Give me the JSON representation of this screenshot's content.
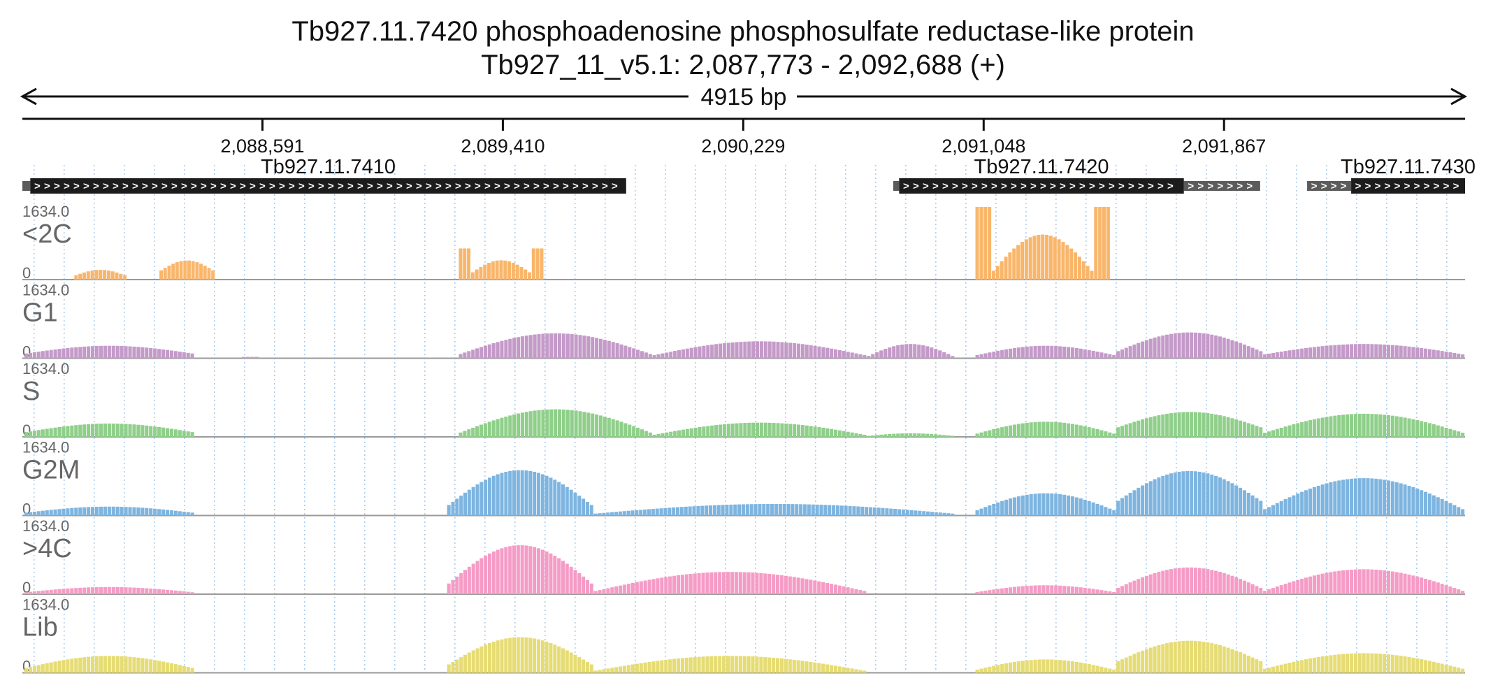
{
  "header": {
    "title": "Tb927.11.7420  phosphoadenosine phosphosulfate reductase-like protein",
    "subtitle": "Tb927_11_v5.1: 2,087,773 - 2,092,688 (+)",
    "span_label": "4915 bp"
  },
  "chart_data": {
    "type": "area",
    "region": {
      "chrom": "Tb927_11_v5.1",
      "start": 2087773,
      "end": 2092688,
      "strand": "+"
    },
    "ticks": [
      {
        "pos": 2088591,
        "label": "2,088,591"
      },
      {
        "pos": 2089410,
        "label": "2,089,410"
      },
      {
        "pos": 2090229,
        "label": "2,090,229"
      },
      {
        "pos": 2091048,
        "label": "2,091,048"
      },
      {
        "pos": 2091867,
        "label": "2,091,867"
      }
    ],
    "genes": [
      {
        "name": "Tb927.11.7410",
        "cds": [
          2087800,
          2089830
        ],
        "utr": [
          [
            2087773,
            2087800
          ]
        ]
      },
      {
        "name": "Tb927.11.7420",
        "cds": [
          2090760,
          2091730
        ],
        "utr": [
          [
            2090740,
            2090760
          ],
          [
            2091730,
            2091990
          ]
        ]
      },
      {
        "name": "Tb927.11.7430",
        "cds": [
          2092300,
          2092688
        ],
        "utr": [
          [
            2092150,
            2092300
          ]
        ]
      }
    ],
    "ylim": [
      0,
      1634.0
    ],
    "ymax_label": "1634.0",
    "ymin_label": "0",
    "series": [
      {
        "name": "<2C",
        "color": "#f9b66b",
        "segments": [
          {
            "start": 2087950,
            "end": 2088130,
            "shape": "hump",
            "low": 80,
            "high": 220
          },
          {
            "start": 2088240,
            "end": 2088430,
            "shape": "hump",
            "low": 180,
            "high": 430
          },
          {
            "start": 2089260,
            "end": 2089550,
            "shape": "dip",
            "low": 100,
            "high": 700
          },
          {
            "start": 2091020,
            "end": 2091480,
            "shape": "dip",
            "low": 140,
            "high": 1634
          }
        ]
      },
      {
        "name": "G1",
        "color": "#c49ac9",
        "segments": [
          {
            "start": 2087780,
            "end": 2088360,
            "shape": "hump",
            "low": 100,
            "high": 280
          },
          {
            "start": 2088520,
            "end": 2088580,
            "shape": "flat",
            "low": 30,
            "high": 30
          },
          {
            "start": 2089260,
            "end": 2089920,
            "shape": "hump",
            "low": 80,
            "high": 560
          },
          {
            "start": 2089920,
            "end": 2090650,
            "shape": "hump",
            "low": 60,
            "high": 380
          },
          {
            "start": 2090650,
            "end": 2090950,
            "shape": "hump",
            "low": 30,
            "high": 320
          },
          {
            "start": 2091020,
            "end": 2091500,
            "shape": "hump",
            "low": 60,
            "high": 280
          },
          {
            "start": 2091500,
            "end": 2092000,
            "shape": "hump",
            "low": 140,
            "high": 580
          },
          {
            "start": 2092000,
            "end": 2092688,
            "shape": "hump",
            "low": 80,
            "high": 320
          }
        ]
      },
      {
        "name": "S",
        "color": "#8fcf8a",
        "segments": [
          {
            "start": 2087780,
            "end": 2088360,
            "shape": "hump",
            "low": 100,
            "high": 300
          },
          {
            "start": 2089260,
            "end": 2089920,
            "shape": "hump",
            "low": 80,
            "high": 620
          },
          {
            "start": 2089920,
            "end": 2090650,
            "shape": "hump",
            "low": 40,
            "high": 320
          },
          {
            "start": 2090650,
            "end": 2090950,
            "shape": "hump",
            "low": 20,
            "high": 80
          },
          {
            "start": 2091020,
            "end": 2091500,
            "shape": "hump",
            "low": 60,
            "high": 340
          },
          {
            "start": 2091500,
            "end": 2092000,
            "shape": "hump",
            "low": 200,
            "high": 560
          },
          {
            "start": 2092000,
            "end": 2092688,
            "shape": "hump",
            "low": 80,
            "high": 520
          }
        ]
      },
      {
        "name": "G2M",
        "color": "#7eb5e0",
        "segments": [
          {
            "start": 2087780,
            "end": 2088360,
            "shape": "hump",
            "low": 60,
            "high": 200
          },
          {
            "start": 2089220,
            "end": 2089720,
            "shape": "hump",
            "low": 200,
            "high": 1020
          },
          {
            "start": 2089720,
            "end": 2090950,
            "shape": "hump",
            "low": 40,
            "high": 260
          },
          {
            "start": 2091020,
            "end": 2091500,
            "shape": "hump",
            "low": 100,
            "high": 500
          },
          {
            "start": 2091500,
            "end": 2092000,
            "shape": "hump",
            "low": 300,
            "high": 1000
          },
          {
            "start": 2092000,
            "end": 2092688,
            "shape": "hump",
            "low": 120,
            "high": 840
          }
        ]
      },
      {
        "name": ">4C",
        "color": "#f59cc6",
        "segments": [
          {
            "start": 2087780,
            "end": 2088360,
            "shape": "hump",
            "low": 40,
            "high": 160
          },
          {
            "start": 2089220,
            "end": 2089720,
            "shape": "hump",
            "low": 200,
            "high": 1100
          },
          {
            "start": 2089720,
            "end": 2090650,
            "shape": "hump",
            "low": 60,
            "high": 500
          },
          {
            "start": 2091020,
            "end": 2091500,
            "shape": "hump",
            "low": 40,
            "high": 200
          },
          {
            "start": 2091500,
            "end": 2092000,
            "shape": "hump",
            "low": 120,
            "high": 600
          },
          {
            "start": 2092000,
            "end": 2092688,
            "shape": "hump",
            "low": 60,
            "high": 560
          }
        ]
      },
      {
        "name": "Lib",
        "color": "#e6dc74",
        "segments": [
          {
            "start": 2087780,
            "end": 2088360,
            "shape": "hump",
            "low": 100,
            "high": 380
          },
          {
            "start": 2089220,
            "end": 2089720,
            "shape": "hump",
            "low": 160,
            "high": 800
          },
          {
            "start": 2089720,
            "end": 2090650,
            "shape": "hump",
            "low": 40,
            "high": 380
          },
          {
            "start": 2091020,
            "end": 2091500,
            "shape": "hump",
            "low": 60,
            "high": 300
          },
          {
            "start": 2091500,
            "end": 2092000,
            "shape": "hump",
            "low": 240,
            "high": 720
          },
          {
            "start": 2092000,
            "end": 2092688,
            "shape": "hump",
            "low": 80,
            "high": 440
          }
        ]
      }
    ]
  }
}
